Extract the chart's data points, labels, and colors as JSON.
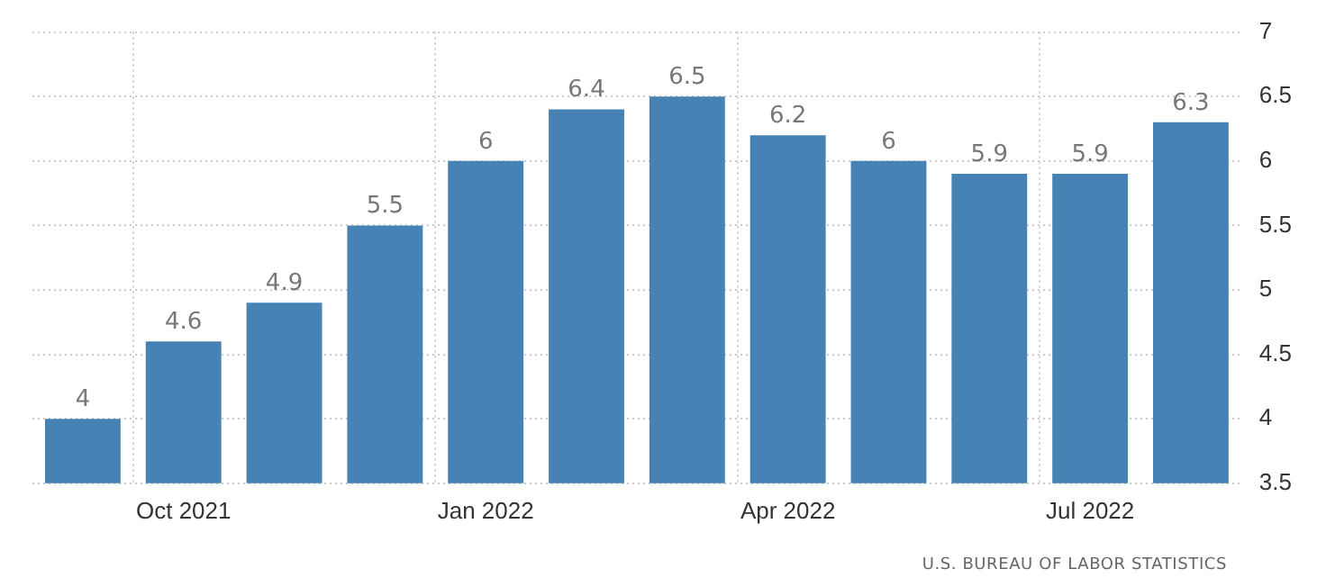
{
  "chart_data": {
    "type": "bar",
    "categories": [
      null,
      "Oct 2021",
      null,
      null,
      "Jan 2022",
      null,
      null,
      "Apr 2022",
      null,
      null,
      "Jul 2022",
      null
    ],
    "values": [
      4,
      4.6,
      4.9,
      5.5,
      6,
      6.4,
      6.5,
      6.2,
      6,
      5.9,
      5.9,
      6.3
    ],
    "color": "#4682b4",
    "ylim": [
      3.5,
      7
    ],
    "yticks": [
      3.5,
      4,
      4.5,
      5,
      5.5,
      6,
      6.5,
      7
    ],
    "grid": true,
    "data_labels": true,
    "annotations": [
      "U.S. BUREAU OF LABOR STATISTICS"
    ]
  }
}
